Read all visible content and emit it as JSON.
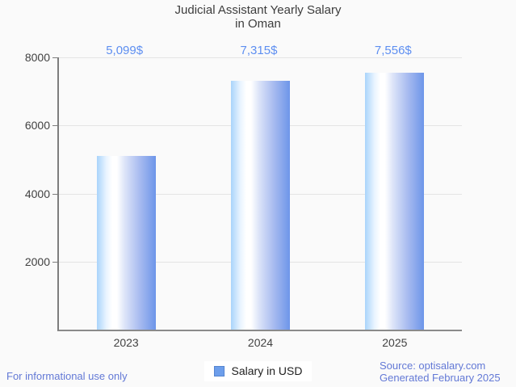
{
  "background_color": "#fafafa",
  "chart_data": {
    "type": "bar",
    "title": "Judicial Assistant Yearly Salary in Oman",
    "title_lines": [
      "Judicial Assistant Yearly Salary",
      "in Oman"
    ],
    "categories": [
      "2023",
      "2024",
      "2025"
    ],
    "series": [
      {
        "name": "Salary in USD",
        "values": [
          5099,
          7315,
          7556
        ]
      }
    ],
    "value_labels": [
      "5,099$",
      "7,315$",
      "7,556$"
    ],
    "xlabel": "",
    "ylabel": "",
    "ylim": [
      0,
      8000
    ],
    "yticks": [
      2000,
      4000,
      6000,
      8000
    ],
    "grid": true,
    "legend_position": "bottom",
    "value_label_color": "#5e8ff1",
    "bar_gradient": [
      "#a9d4fb",
      "#ffffff",
      "#6d95e9"
    ],
    "axis_color": "#7d7d7d",
    "gridline_color": "#e4e4e4",
    "tick_label_color": "#424242"
  },
  "legend": {
    "label": "Salary in USD",
    "swatch_color": "#6d9eeb",
    "swatch_border_color": "#5585d0"
  },
  "footer": {
    "left_text": "For informational use only",
    "source_text": "Source: optisalary.com",
    "generated_text": "Generated February 2025",
    "text_color": "#6379d6"
  }
}
